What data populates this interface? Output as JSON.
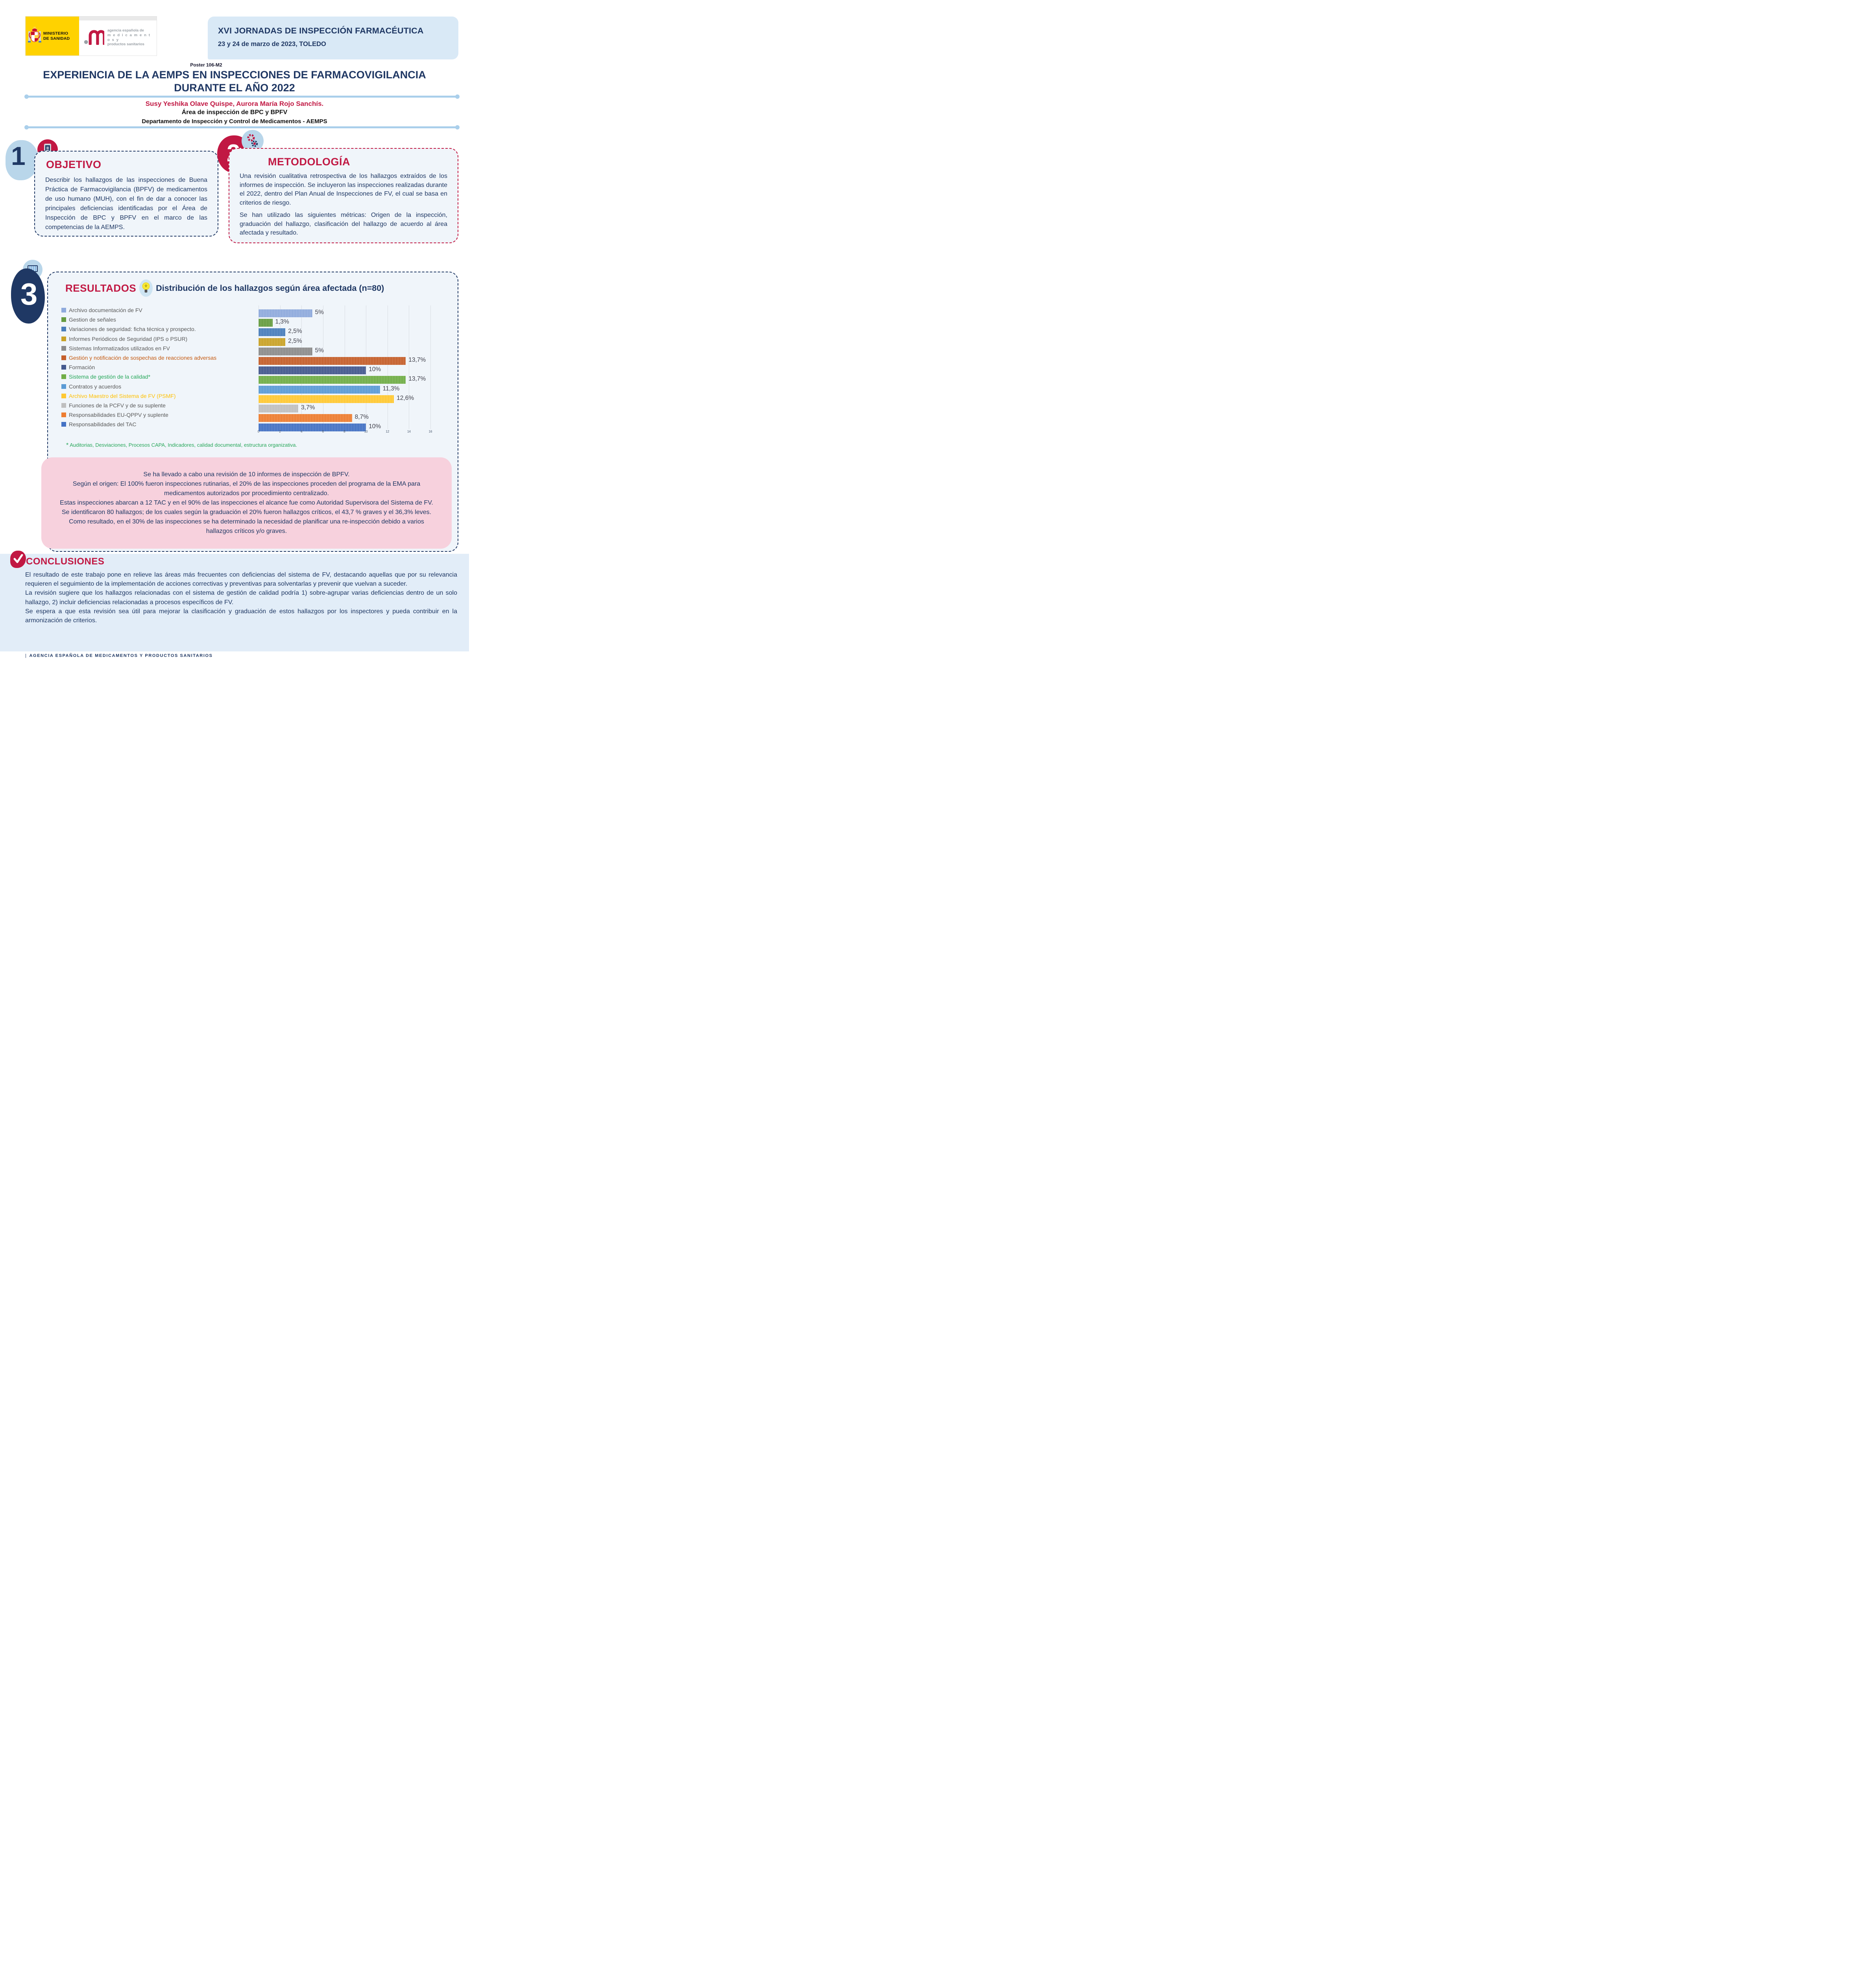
{
  "header": {
    "ministry": {
      "line1": "MINISTERIO",
      "line2": "DE SANIDAD"
    },
    "aemps_logo": {
      "line1": "agencia española de",
      "line2": "m e d i c a m e n t o s   y",
      "line3": "productos sanitarios"
    },
    "conference": {
      "title": "XVI JORNADAS DE INSPECCIÓN FARMACÉUTICA",
      "date": "23 y 24 de marzo de 2023, TOLEDO"
    }
  },
  "poster": {
    "code": "Poster 106-M2",
    "title_line1": "EXPERIENCIA DE LA AEMPS EN INSPECCIONES DE FARMACOVIGILANCIA",
    "title_line2": "DURANTE EL AÑO 2022",
    "authors": "Susy Yeshika Olave Quispe, Aurora María Rojo Sanchís.",
    "affiliation1": "Área de  inspección de BPC y BPFV",
    "affiliation2": "Departamento de Inspección y Control de Medicamentos - AEMPS"
  },
  "sections": {
    "objetivo": {
      "number": "1",
      "title": "OBJETIVO",
      "body": "Describir los hallazgos de las inspecciones de Buena Práctica de Farmacovigilancia (BPFV) de medicamentos de uso humano (MUH), con el fin de dar a conocer las principales deficiencias identificadas por el Área de Inspección de BPC y BPFV en el marco de las competencias de la AEMPS."
    },
    "metodologia": {
      "number": "2",
      "title": "METODOLOGÍA",
      "p1": "Una revisión cualitativa retrospectiva de los hallazgos extraídos de los informes de inspección. Se incluyeron las inspecciones realizadas durante el 2022, dentro del Plan Anual de Inspecciones de FV, el cual se basa en criterios de riesgo.",
      "p2": "Se han utilizado las siguientes métricas: Origen de la inspección, graduación del hallazgo, clasificación del hallazgo de acuerdo al área afectada y resultado."
    },
    "resultados": {
      "number": "3",
      "title": "RESULTADOS",
      "chart_title": "Distribución de los hallazgos según área afectada (n=80)",
      "footnote_marker": "*",
      "footnote": "Auditorias, Desviaciones, Procesos CAPA, Indicadores, calidad documental, estructura organizativa.",
      "summary": [
        "Se ha llevado a cabo una revisión de 10 informes de inspección de BPFV.",
        "Según el origen: El 100% fueron inspecciones rutinarias, el 20% de las inspecciones proceden del programa de la EMA para medicamentos autorizados por procedimiento centralizado.",
        "Estas inspecciones abarcan a 12 TAC y en el 90% de las inspecciones el alcance fue como Autoridad Supervisora del Sistema de FV.",
        "Se identificaron 80 hallazgos; de los cuales según la graduación el 20% fueron hallazgos críticos, el 43,7 % graves y el 36,3% leves.",
        "Como resultado, en el 30% de las inspecciones se ha determinado la necesidad de planificar una re-inspección debido a varios hallazgos críticos y/o graves."
      ]
    }
  },
  "chart_data": {
    "type": "bar",
    "orientation": "horizontal",
    "title": "Distribución de los hallazgos según área afectada (n=80)",
    "categories": [
      "Archivo documentación de FV",
      "Gestion de señales",
      "Variaciones de seguridad: ficha técnica y prospecto.",
      "Informes Periódicos de Seguridad (IPS o PSUR)",
      "Sistemas Informatizados utilizados en FV",
      "Gestión y notificación de sospechas de reacciones adversas",
      "Formación",
      "Sistema de gestión de la calidad*",
      "Contratos y acuerdos",
      "Archivo Maestro del Sistema de FV (PSMF)",
      "Funciones de la PCFV y de su suplente",
      "Responsabilidades EU-QPPV y suplente",
      "Responsabilidades del TAC"
    ],
    "values": [
      5,
      1.3,
      2.5,
      2.5,
      5,
      13.7,
      10,
      13.7,
      11.3,
      12.6,
      3.7,
      8.7,
      10
    ],
    "value_labels": [
      "5%",
      "1,3%",
      "2,5%",
      "2,5%",
      "5%",
      "13,7%",
      "10%",
      "13,7%",
      "11,3%",
      "12,6%",
      "3,7%",
      "8,7%",
      "10%"
    ],
    "colors": [
      "#8faadc",
      "#669c41",
      "#4a7ebb",
      "#c9a227",
      "#8c8c8c",
      "#c55f2b",
      "#44598e",
      "#70ad47",
      "#5b9bd5",
      "#ffc832",
      "#bfbfbf",
      "#ed7d31",
      "#4472c4"
    ],
    "label_colors": [
      "#595959",
      "#595959",
      "#595959",
      "#595959",
      "#595959",
      "#c55a11",
      "#595959",
      "#27a75a",
      "#595959",
      "#ffc000",
      "#595959",
      "#595959",
      "#595959"
    ],
    "xlim": [
      0,
      16
    ],
    "xticks": [
      0,
      2,
      4,
      6,
      8,
      10,
      12,
      14,
      16
    ],
    "grid": true,
    "legend_position": "left"
  },
  "conclusiones": {
    "title": "CONCLUSIONES",
    "paragraphs": [
      "El resultado de este trabajo pone en relieve las áreas más frecuentes con deficiencias del sistema de FV, destacando aquellas que por su relevancia requieren el seguimiento de la implementación de acciones correctivas y preventivas para solventarlas y prevenir que vuelvan a suceder.",
      "La revisión sugiere que los hallazgos relacionadas con el sistema de gestión de calidad podría 1) sobre-agrupar varias deficiencias dentro de un solo hallazgo, 2) incluir deficiencias relacionadas a procesos específicos de FV.",
      "Se espera a que esta revisión sea útil para mejorar la clasificación y graduación de estos hallazgos por los inspectores y pueda contribuir en la armonización de criterios."
    ]
  },
  "footer": {
    "prefix": "|",
    "text": "AGENCIA ESPAÑOLA DE MEDICAMENTOS Y PRODUCTOS SANITARIOS"
  }
}
